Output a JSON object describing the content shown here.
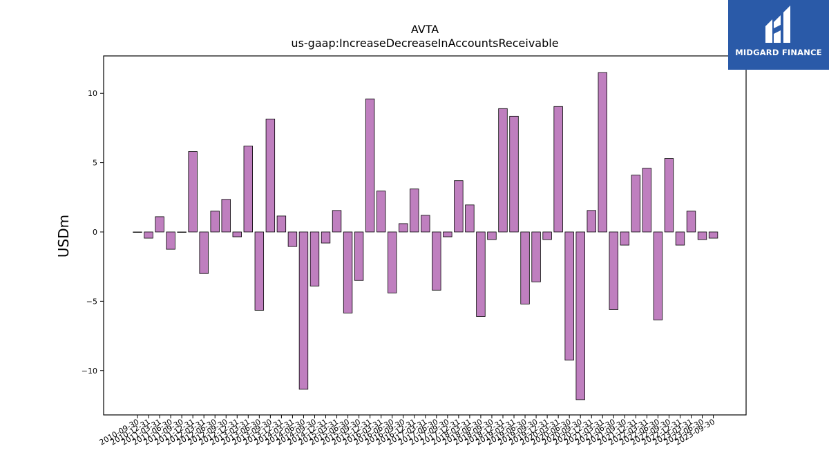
{
  "brand": {
    "name": "MIDGARD FINANCE",
    "color": "#2a5aa8",
    "icon": "midgard-logo-icon"
  },
  "chart_data": {
    "type": "bar",
    "title": "AVTA",
    "subtitle": "us-gaap:IncreaseDecreaseInAccountsReceivable",
    "xlabel": "",
    "ylabel": "USDm",
    "ylim": [
      -13.2,
      12.7
    ],
    "yticks": [
      -10,
      -5,
      0,
      5,
      10
    ],
    "grid": false,
    "bar_color": "#bf7fbf",
    "categories": [
      "2010-09-30",
      "2010-12-31",
      "2011-03-31",
      "2011-06-30",
      "2011-09-30",
      "2011-12-31",
      "2012-03-31",
      "2012-06-30",
      "2012-09-30",
      "2012-12-31",
      "2013-03-31",
      "2013-06-30",
      "2013-09-30",
      "2013-12-31",
      "2014-03-31",
      "2014-06-30",
      "2014-09-30",
      "2014-12-31",
      "2015-03-31",
      "2015-06-30",
      "2015-09-30",
      "2015-12-31",
      "2016-03-31",
      "2016-06-30",
      "2016-09-30",
      "2016-12-31",
      "2017-03-31",
      "2017-06-30",
      "2017-09-30",
      "2017-12-31",
      "2018-03-31",
      "2018-06-30",
      "2018-09-30",
      "2018-12-31",
      "2019-03-31",
      "2019-06-30",
      "2019-09-30",
      "2019-12-31",
      "2020-03-31",
      "2020-06-30",
      "2020-09-30",
      "2020-12-31",
      "2021-03-31",
      "2021-06-30",
      "2021-09-30",
      "2021-12-31",
      "2022-03-31",
      "2022-06-30",
      "2022-09-30",
      "2022-12-31",
      "2023-03-31",
      "2023-06-30",
      "2023-09-30"
    ],
    "values": [
      0.0,
      -0.45,
      1.1,
      -1.25,
      0.0,
      5.8,
      -3.0,
      1.5,
      2.35,
      -0.35,
      6.2,
      -5.65,
      8.15,
      1.15,
      -1.05,
      -11.35,
      -3.9,
      -0.8,
      1.55,
      -5.85,
      -3.5,
      9.6,
      2.95,
      -4.4,
      0.6,
      3.1,
      1.2,
      -4.2,
      -0.35,
      3.7,
      1.95,
      -6.1,
      -0.55,
      8.9,
      8.35,
      -5.2,
      -3.6,
      -0.55,
      9.05,
      -9.25,
      -12.1,
      1.55,
      11.5,
      -5.6,
      -0.95,
      4.1,
      4.6,
      -6.35,
      5.3,
      -0.95,
      1.5,
      -0.55,
      -0.45
    ]
  }
}
